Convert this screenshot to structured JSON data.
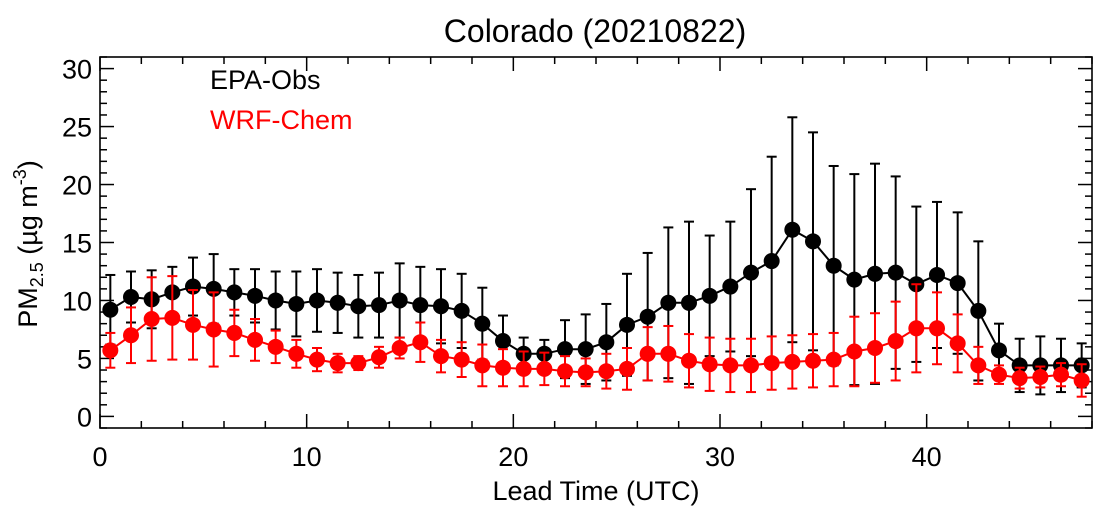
{
  "chart_data": {
    "type": "line",
    "title": "Colorado (20210822)",
    "xlabel": "Lead Time (UTC)",
    "ylabel": {
      "main": "PM",
      "sub": "2.5",
      "unit_open": " (µg m",
      "sup": "-3",
      "unit_close": ")"
    },
    "xlim": [
      0,
      48
    ],
    "ylim": [
      -1,
      31
    ],
    "xticks": [
      0,
      10,
      20,
      30,
      40
    ],
    "yticks": [
      0,
      5,
      10,
      15,
      20,
      25,
      30
    ],
    "x": [
      0.5,
      1.5,
      2.5,
      3.5,
      4.5,
      5.5,
      6.5,
      7.5,
      8.5,
      9.5,
      10.5,
      11.5,
      12.5,
      13.5,
      14.5,
      15.5,
      16.5,
      17.5,
      18.5,
      19.5,
      20.5,
      21.5,
      22.5,
      23.5,
      24.5,
      25.5,
      26.5,
      27.5,
      28.5,
      29.5,
      30.5,
      31.5,
      32.5,
      33.5,
      34.5,
      35.5,
      36.5,
      37.5,
      38.5,
      39.5,
      40.5,
      41.5,
      42.5,
      43.5,
      44.5,
      45.5,
      46.5,
      47.5
    ],
    "series": [
      {
        "name": "EPA-Obs",
        "color": "#000000",
        "values": [
          9.2,
          10.3,
          10.1,
          10.7,
          11.2,
          11.0,
          10.7,
          10.4,
          10.0,
          9.7,
          10.0,
          9.8,
          9.5,
          9.6,
          10.0,
          9.6,
          9.5,
          9.1,
          8.0,
          6.5,
          5.4,
          5.4,
          5.8,
          5.8,
          6.4,
          7.9,
          8.6,
          9.8,
          9.8,
          10.4,
          11.2,
          12.4,
          13.4,
          16.1,
          15.1,
          13.0,
          11.8,
          12.3,
          12.4,
          11.4,
          12.2,
          11.5,
          9.1,
          5.7,
          4.4,
          4.4,
          4.4,
          4.4
        ],
        "errors": [
          3.0,
          2.2,
          2.5,
          2.2,
          2.5,
          3.0,
          2.0,
          2.3,
          2.5,
          2.8,
          2.7,
          2.6,
          2.7,
          2.8,
          3.2,
          3.3,
          3.2,
          3.2,
          3.1,
          2.2,
          1.4,
          1.2,
          2.5,
          3.0,
          3.3,
          4.4,
          5.5,
          6.5,
          7.0,
          5.2,
          5.6,
          7.2,
          9.0,
          9.7,
          9.4,
          8.6,
          9.1,
          9.5,
          8.3,
          6.7,
          6.3,
          6.1,
          6.0,
          2.3,
          2.3,
          2.5,
          2.3,
          1.9
        ]
      },
      {
        "name": "WRF-Chem",
        "color": "#ff0000",
        "values": [
          5.7,
          7.0,
          8.4,
          8.5,
          7.9,
          7.5,
          7.2,
          6.6,
          6.0,
          5.4,
          4.9,
          4.6,
          4.6,
          5.1,
          5.9,
          6.4,
          5.2,
          4.9,
          4.4,
          4.2,
          4.1,
          4.1,
          3.9,
          3.8,
          3.9,
          4.1,
          5.4,
          5.4,
          4.8,
          4.5,
          4.4,
          4.4,
          4.6,
          4.7,
          4.8,
          4.9,
          5.6,
          5.9,
          6.5,
          7.6,
          7.6,
          6.3,
          4.4,
          3.6,
          3.3,
          3.4,
          3.6,
          3.1
        ],
        "errors": [
          1.5,
          2.4,
          3.6,
          3.6,
          3.0,
          3.2,
          2.0,
          1.8,
          1.4,
          1.2,
          1.0,
          0.8,
          0.6,
          0.9,
          0.9,
          1.7,
          1.4,
          1.5,
          1.8,
          1.6,
          1.5,
          1.4,
          1.3,
          1.2,
          1.5,
          1.8,
          2.3,
          2.4,
          2.3,
          2.3,
          2.3,
          2.3,
          2.3,
          2.3,
          2.3,
          2.3,
          3.0,
          3.0,
          3.4,
          3.8,
          3.1,
          2.5,
          1.6,
          0.8,
          0.9,
          0.9,
          1.0,
          1.4
        ]
      }
    ],
    "legend": {
      "placement": "top-left",
      "items": [
        "EPA-Obs",
        "WRF-Chem"
      ]
    },
    "grid": false
  }
}
